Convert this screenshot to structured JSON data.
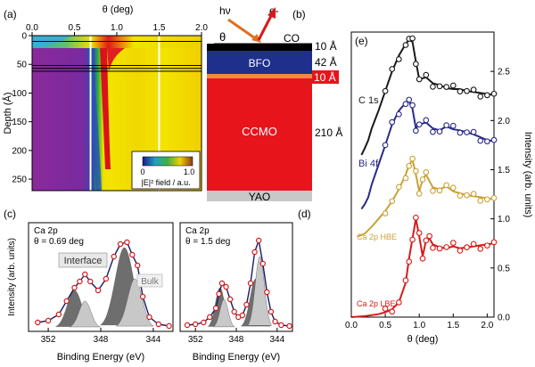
{
  "colors": {
    "map_purple": "#8a2a9a",
    "map_yellow": "#f3e300",
    "map_red": "#d8141a",
    "layer_co": "#000000",
    "layer_bfo": "#1e2f8c",
    "layer_interface": "#f08a3c",
    "layer_ccmo": "#e8141c",
    "layer_yao": "#c8c8c8",
    "curve_c1s": "#1a1a1a",
    "curve_bi4f": "#2a2a8c",
    "curve_ca_hbe": "#c9a236",
    "curve_ca_lbe": "#d81a1a",
    "xps_points": "#d41a1a",
    "xps_fit": "#1a1a66",
    "xps_fill_dark": "#6e6e6e",
    "xps_fill_light": "#c8c8c8",
    "beam_in": "#e07020",
    "beam_out": "#d81a1a"
  },
  "panel_labels": {
    "a": "(a)",
    "b": "(b)",
    "c": "(c)",
    "d": "(d)",
    "e": "(e)"
  },
  "panel_a": {
    "xlabel": "θ (deg)",
    "ylabel": "Depth (Å)",
    "xticks": [
      "0.0",
      "0.5",
      "1.0",
      "1.5",
      "2.0"
    ],
    "yticks": [
      "0",
      "50",
      "100",
      "150",
      "200",
      "250"
    ],
    "colorbar": {
      "ticks": [
        "0",
        "1.0"
      ],
      "label": "|E|² field / a.u."
    }
  },
  "panel_b": {
    "beam_in_label": "hν",
    "beam_out_label": "e-",
    "angle_label": "θ",
    "layers": [
      {
        "name": "CO",
        "thickness": "10 Å"
      },
      {
        "name": "BFO",
        "thickness": "42 Å"
      },
      {
        "name": "",
        "thickness": "10 Å"
      },
      {
        "name": "CCMO",
        "thickness": "210 Å"
      },
      {
        "name": "YAO",
        "thickness": ""
      }
    ]
  },
  "panel_c": {
    "title_line1": "Ca 2p",
    "title_line2": "θ = 0.69 deg",
    "annotation_interface": "Interface",
    "annotation_bulk": "Bulk",
    "xlabel": "Binding Energy (eV)",
    "ylabel": "Intensity (arb. units)",
    "xticks": [
      "352",
      "348",
      "344"
    ]
  },
  "panel_d": {
    "title_line1": "Ca 2p",
    "title_line2": "θ = 1.5 deg",
    "xlabel": "Binding Energy (eV)",
    "xticks": [
      "352",
      "348",
      "344"
    ]
  },
  "panel_e": {
    "xlabel": "θ (deg)",
    "ylabel": "Intensity (arb. units)",
    "xticks": [
      "0.0",
      "0.5",
      "1.0",
      "1.5",
      "2.0"
    ],
    "yticks": [
      "0.0",
      "0.5",
      "1.0",
      "1.5",
      "2.0",
      "2.5"
    ],
    "curve_labels": [
      "C 1s",
      "Bi 4f",
      "Ca 2p HBE",
      "Ca 2p LBE"
    ]
  },
  "chart_data": [
    {
      "type": "heatmap",
      "panel": "a",
      "xlabel": "θ (deg)",
      "ylabel": "Depth (Å)",
      "xlim": [
        0,
        2.0
      ],
      "ylim": [
        0,
        270
      ],
      "vertical_markers_theta": [
        0.69,
        1.5
      ],
      "horizontal_markers_depth": [
        0,
        10,
        52,
        57,
        62
      ],
      "colorbar_range": [
        0,
        1.0
      ]
    },
    {
      "type": "line",
      "panel": "c",
      "xlabel": "Binding Energy (eV)",
      "ylabel": "Intensity (arb. units)",
      "xlim": [
        353.5,
        342.5
      ],
      "x": [
        352.8,
        352.0,
        351.2,
        350.6,
        350.0,
        349.6,
        349.2,
        348.8,
        348.2,
        347.6,
        347.0,
        346.5,
        346.0,
        345.6,
        345.2,
        344.8,
        344.3,
        343.6,
        342.8
      ],
      "values": [
        0.06,
        0.08,
        0.15,
        0.3,
        0.45,
        0.52,
        0.6,
        0.52,
        0.42,
        0.55,
        0.8,
        0.94,
        0.96,
        0.82,
        0.7,
        0.35,
        0.12,
        0.04,
        0.02
      ]
    },
    {
      "type": "line",
      "panel": "d",
      "xlabel": "Binding Energy (eV)",
      "xlim": [
        353.5,
        342.5
      ],
      "x": [
        352.8,
        352.0,
        351.2,
        350.6,
        350.0,
        349.7,
        349.4,
        349.0,
        348.6,
        348.2,
        347.8,
        347.4,
        347.0,
        346.6,
        346.2,
        345.8,
        345.4,
        345.0,
        344.6,
        344.2,
        343.6,
        342.8
      ],
      "values": [
        0.03,
        0.04,
        0.06,
        0.12,
        0.22,
        0.38,
        0.5,
        0.46,
        0.32,
        0.18,
        0.12,
        0.14,
        0.26,
        0.5,
        0.85,
        0.98,
        0.72,
        0.4,
        0.18,
        0.07,
        0.03,
        0.02
      ]
    },
    {
      "type": "line",
      "panel": "e",
      "xlabel": "θ (deg)",
      "ylabel": "Intensity (arb. units)",
      "xlim": [
        0,
        2.1
      ],
      "ylim": [
        0,
        2.9
      ],
      "series": [
        {
          "name": "C 1s",
          "x": [
            0.15,
            0.2,
            0.25,
            0.3,
            0.4,
            0.5,
            0.6,
            0.7,
            0.8,
            0.85,
            0.9,
            0.95,
            1.0,
            1.1,
            1.2,
            1.3,
            1.4,
            1.5,
            1.6,
            1.7,
            1.8,
            1.9,
            2.0,
            2.1
          ],
          "values": [
            1.65,
            1.72,
            1.8,
            1.92,
            2.1,
            2.3,
            2.5,
            2.66,
            2.78,
            2.82,
            2.8,
            2.6,
            2.42,
            2.44,
            2.38,
            2.36,
            2.33,
            2.32,
            2.32,
            2.3,
            2.29,
            2.28,
            2.27,
            2.26
          ]
        },
        {
          "name": "Bi 4f",
          "x": [
            0.15,
            0.2,
            0.25,
            0.3,
            0.4,
            0.5,
            0.6,
            0.7,
            0.8,
            0.85,
            0.9,
            0.95,
            1.0,
            1.1,
            1.2,
            1.3,
            1.4,
            1.5,
            1.6,
            1.7,
            1.8,
            1.9,
            2.0,
            2.1
          ],
          "values": [
            1.1,
            1.15,
            1.22,
            1.35,
            1.55,
            1.75,
            1.96,
            2.1,
            2.18,
            2.2,
            2.12,
            1.92,
            1.96,
            1.98,
            1.92,
            1.9,
            1.94,
            1.91,
            1.9,
            1.88,
            1.86,
            1.83,
            1.8,
            1.79
          ]
        },
        {
          "name": "Ca 2p HBE",
          "x": [
            0.1,
            0.2,
            0.3,
            0.4,
            0.5,
            0.6,
            0.7,
            0.8,
            0.85,
            0.9,
            0.95,
            1.0,
            1.05,
            1.1,
            1.2,
            1.3,
            1.4,
            1.5,
            1.6,
            1.7,
            1.8,
            1.9,
            2.0,
            2.1
          ],
          "values": [
            0.82,
            0.85,
            0.92,
            1.0,
            1.08,
            1.18,
            1.3,
            1.45,
            1.55,
            1.6,
            1.45,
            1.28,
            1.4,
            1.45,
            1.32,
            1.3,
            1.33,
            1.28,
            1.26,
            1.24,
            1.23,
            1.22,
            1.21,
            1.2
          ]
        },
        {
          "name": "Ca 2p LBE",
          "x": [
            0.0,
            0.2,
            0.4,
            0.5,
            0.6,
            0.7,
            0.8,
            0.85,
            0.9,
            0.95,
            1.0,
            1.05,
            1.1,
            1.15,
            1.2,
            1.3,
            1.4,
            1.5,
            1.6,
            1.7,
            1.8,
            1.9,
            2.0,
            2.1
          ],
          "values": [
            0.0,
            0.01,
            0.03,
            0.05,
            0.08,
            0.15,
            0.35,
            0.6,
            0.8,
            1.0,
            0.82,
            0.62,
            0.78,
            0.8,
            0.74,
            0.71,
            0.7,
            0.72,
            0.7,
            0.71,
            0.72,
            0.73,
            0.74,
            0.75
          ]
        }
      ]
    }
  ]
}
